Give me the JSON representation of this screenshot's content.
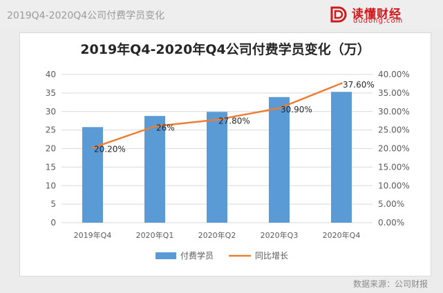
{
  "header": {
    "title": "2019Q4-2020Q4公司付费学员变化",
    "logo_text": "读懂财经",
    "logo_url": "dudong.com"
  },
  "footer": {
    "source": "数据来源：公司财报"
  },
  "colors": {
    "bar": "#5b9bd5",
    "line": "#ed7d31",
    "logo": "#d0191d"
  },
  "chart_data": {
    "type": "bar",
    "title": "2019年Q4-2020年Q4公司付费学员变化（万）",
    "categories": [
      "2019年Q4",
      "2020年Q1",
      "2020年Q2",
      "2020年Q3",
      "2020年Q4"
    ],
    "series": [
      {
        "name": "付费学员",
        "type": "bar",
        "axis": "left",
        "values": [
          25.8,
          28.8,
          29.9,
          33.9,
          35.3
        ]
      },
      {
        "name": "同比增长",
        "type": "line",
        "axis": "right",
        "values": [
          20.2,
          26.0,
          27.8,
          30.9,
          37.6
        ],
        "labels": [
          "20.20%",
          "26%",
          "27.80%",
          "30.90%",
          "37.60%"
        ]
      }
    ],
    "ylim": [
      0,
      40
    ],
    "y_ticks": [
      "0",
      "5",
      "10",
      "15",
      "20",
      "25",
      "30",
      "35",
      "40"
    ],
    "y2lim": [
      0,
      40
    ],
    "y2_ticks": [
      "0.00%",
      "5.00%",
      "10.00%",
      "15.00%",
      "20.00%",
      "25.00%",
      "30.00%",
      "35.00%",
      "40.00%"
    ],
    "grid": true,
    "legend": "bottom"
  }
}
